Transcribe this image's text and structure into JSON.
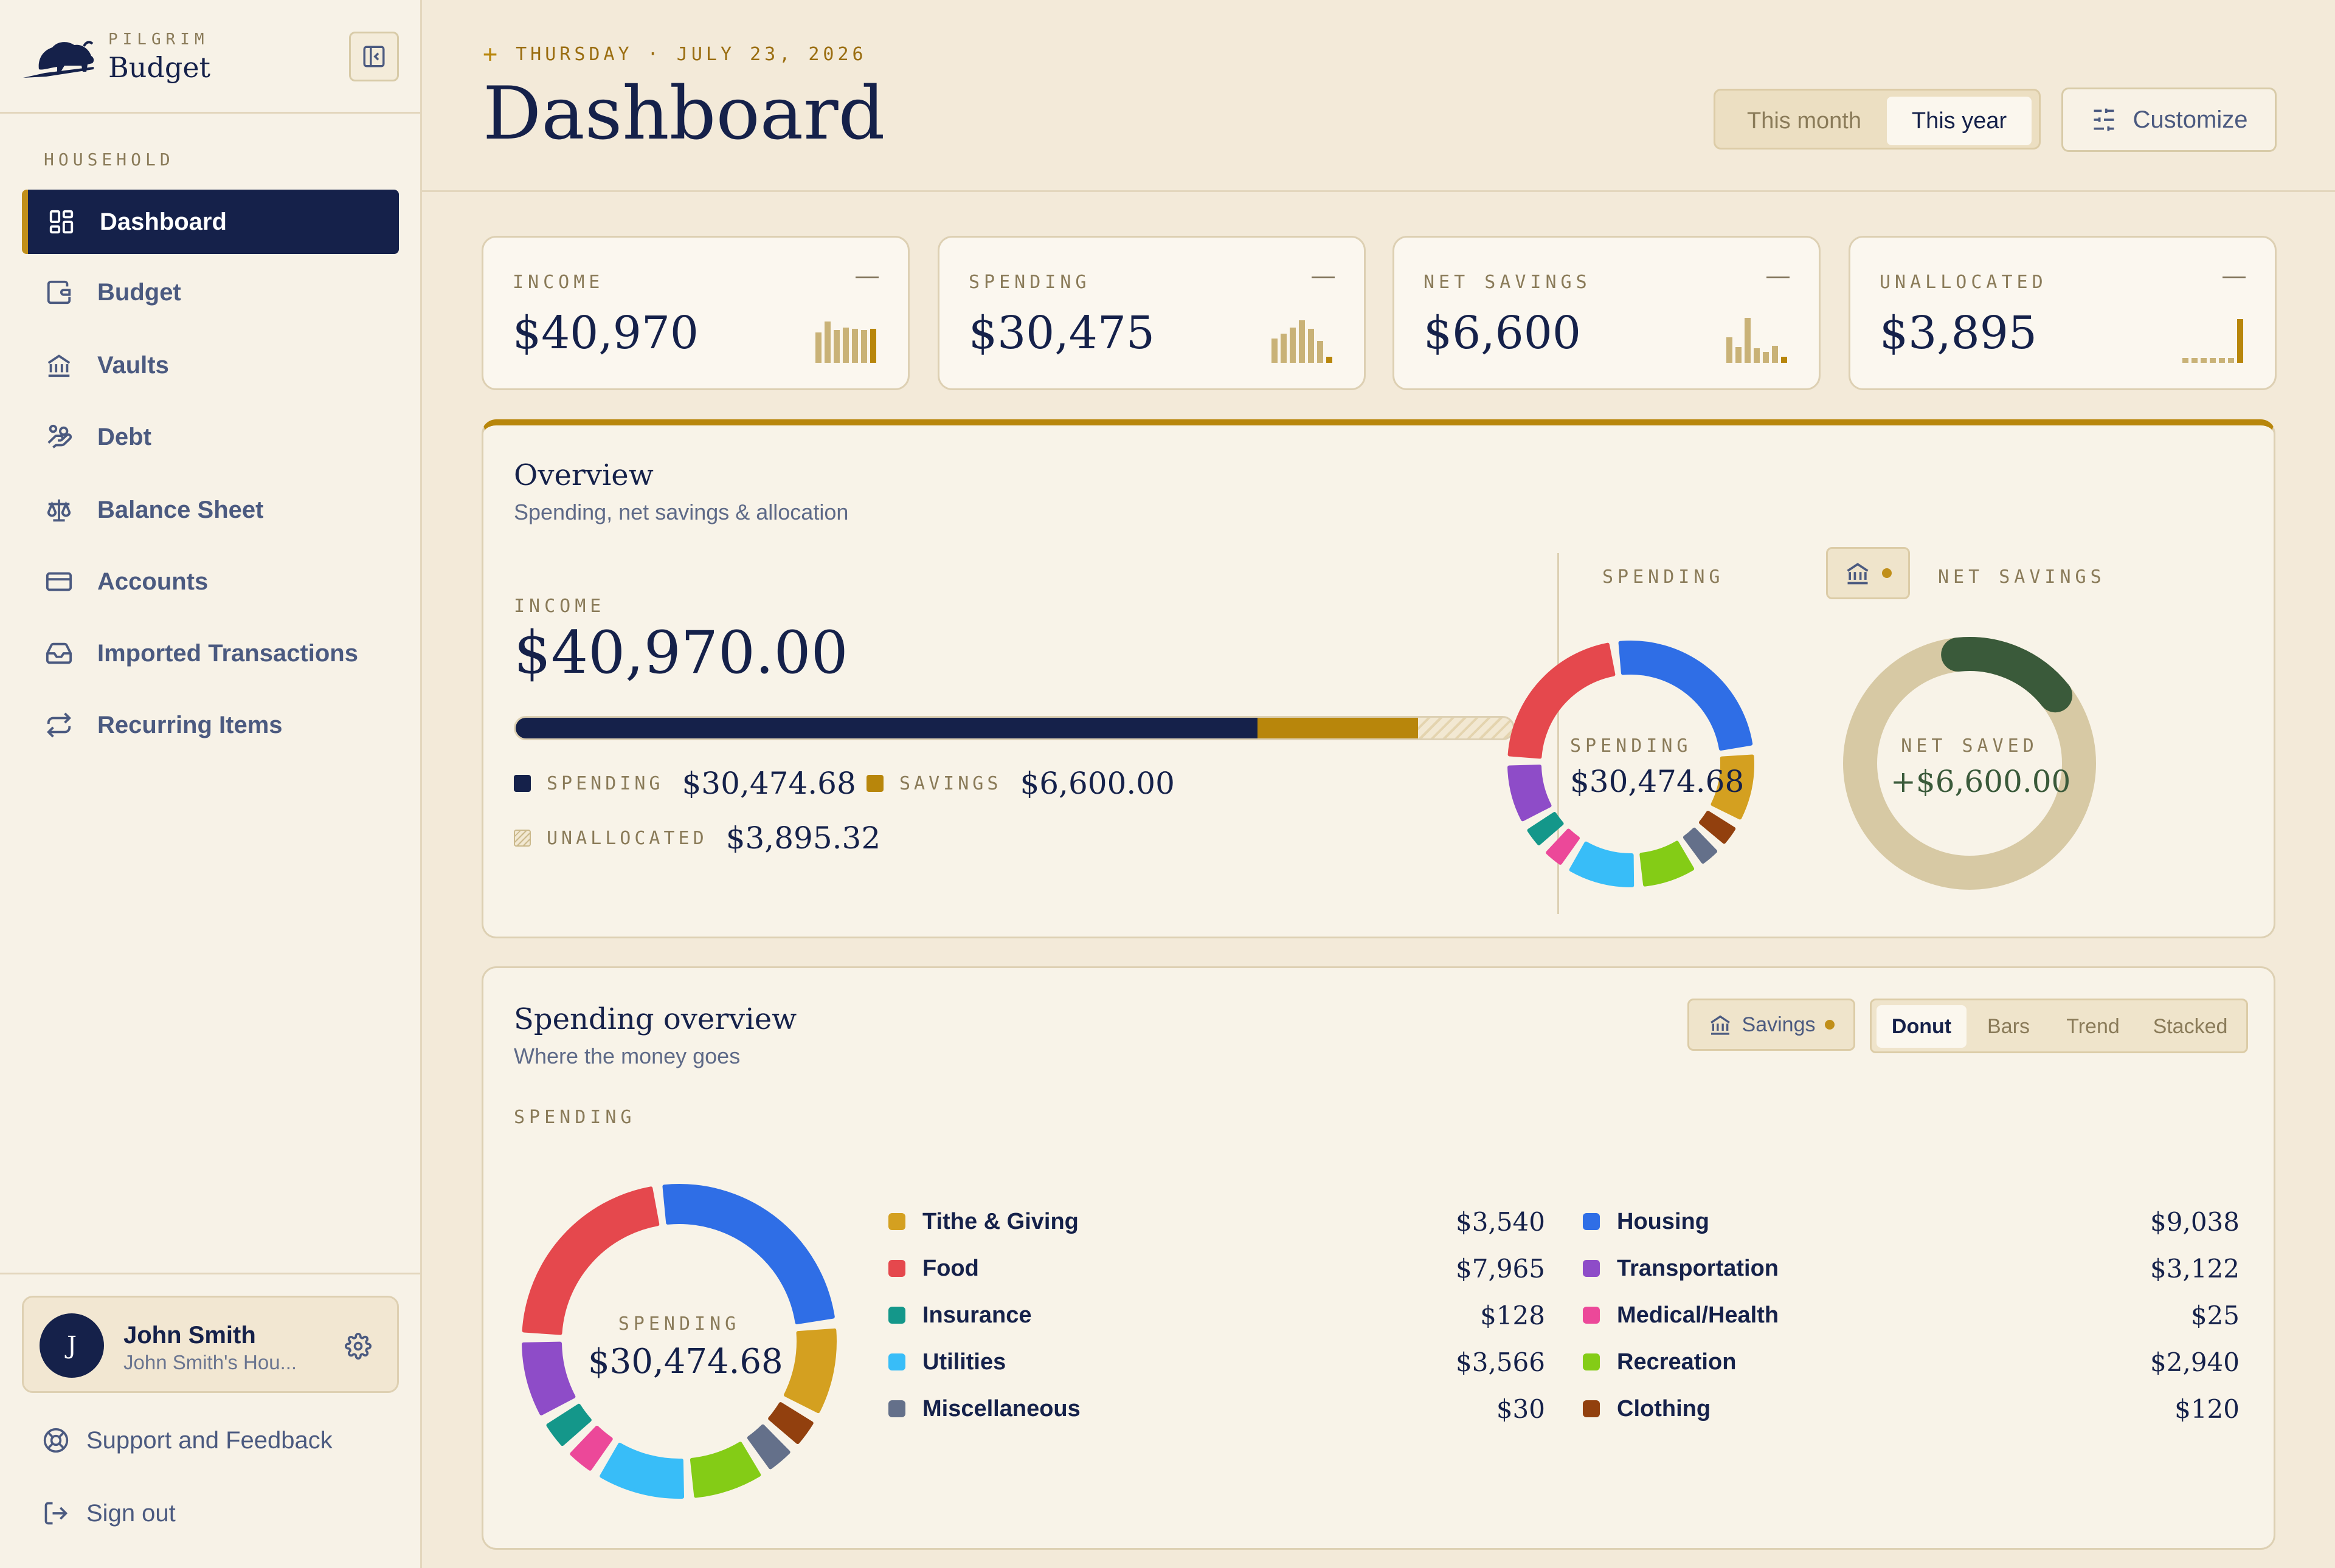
{
  "sidebar": {
    "brand_small": "PILGRIM",
    "brand_name": "Budget",
    "section_label": "HOUSEHOLD",
    "items": [
      {
        "label": "Dashboard",
        "icon": "dashboard-grid-icon"
      },
      {
        "label": "Budget",
        "icon": "wallet-icon"
      },
      {
        "label": "Vaults",
        "icon": "bank-icon"
      },
      {
        "label": "Debt",
        "icon": "hand-coins-icon"
      },
      {
        "label": "Balance Sheet",
        "icon": "scale-icon"
      },
      {
        "label": "Accounts",
        "icon": "credit-card-icon"
      },
      {
        "label": "Imported Transactions",
        "icon": "inbox-icon"
      },
      {
        "label": "Recurring Items",
        "icon": "repeat-icon"
      }
    ],
    "user": {
      "initial": "J",
      "name": "John Smith",
      "household": "John Smith's Hou..."
    },
    "support_label": "Support and Feedback",
    "signout_label": "Sign out"
  },
  "header": {
    "date": "THURSDAY · JULY 23, 2026",
    "title": "Dashboard",
    "period_options": [
      "This month",
      "This year"
    ],
    "period_selected": "This year",
    "customize_label": "Customize"
  },
  "stats": [
    {
      "label": "INCOME",
      "value": "$40,970",
      "trend": "—"
    },
    {
      "label": "SPENDING",
      "value": "$30,475",
      "trend": "—"
    },
    {
      "label": "NET SAVINGS",
      "value": "$6,600",
      "trend": "—"
    },
    {
      "label": "UNALLOCATED",
      "value": "$3,895",
      "trend": "—"
    }
  ],
  "overview": {
    "title": "Overview",
    "subtitle": "Spending, net savings & allocation",
    "income_label": "INCOME",
    "income_value": "$40,970.00",
    "allocation_fractions": {
      "spending": 0.7438,
      "savings": 0.1611,
      "unallocated": 0.0951
    },
    "legend": {
      "spending_label": "SPENDING",
      "spending_value": "$30,474.68",
      "savings_label": "SAVINGS",
      "savings_value": "$6,600.00",
      "unallocated_label": "UNALLOCATED",
      "unallocated_value": "$3,895.32"
    },
    "spending_header": "SPENDING",
    "net_savings_header": "NET SAVINGS",
    "spending_center_label": "SPENDING",
    "spending_center_value": "$30,474.68",
    "net_saved_label": "NET SAVED",
    "net_saved_value": "+$6,600.00",
    "net_saved_fraction": 0.16
  },
  "spending_overview": {
    "title": "Spending overview",
    "subtitle": "Where the money goes",
    "section_label": "SPENDING",
    "savings_toggle": "Savings",
    "view_options": [
      "Donut",
      "Bars",
      "Trend",
      "Stacked"
    ],
    "view_selected": "Donut",
    "center_label": "SPENDING",
    "center_value": "$30,474.68",
    "categories_left": [
      {
        "name": "Tithe & Giving",
        "value": "$3,540",
        "color": "#d4a020"
      },
      {
        "name": "Food",
        "value": "$7,965",
        "color": "#e5484d"
      },
      {
        "name": "Insurance",
        "value": "$128",
        "color": "#14978a"
      },
      {
        "name": "Utilities",
        "value": "$3,566",
        "color": "#38bdf8"
      },
      {
        "name": "Miscellaneous",
        "value": "$30",
        "color": "#64708a"
      }
    ],
    "categories_right": [
      {
        "name": "Housing",
        "value": "$9,038",
        "color": "#2f6ee6"
      },
      {
        "name": "Transportation",
        "value": "$3,122",
        "color": "#8e4cc8"
      },
      {
        "name": "Medical/Health",
        "value": "$25",
        "color": "#ec4899"
      },
      {
        "name": "Recreation",
        "value": "$2,940",
        "color": "#84cc16"
      },
      {
        "name": "Clothing",
        "value": "$120",
        "color": "#92400e"
      }
    ]
  },
  "colors": {
    "navy": "#15214a",
    "gold": "#c08f1a",
    "cream": "#f3ead9",
    "savings_green": "#3a5a3a",
    "ring_track": "#d7c9a4"
  }
}
